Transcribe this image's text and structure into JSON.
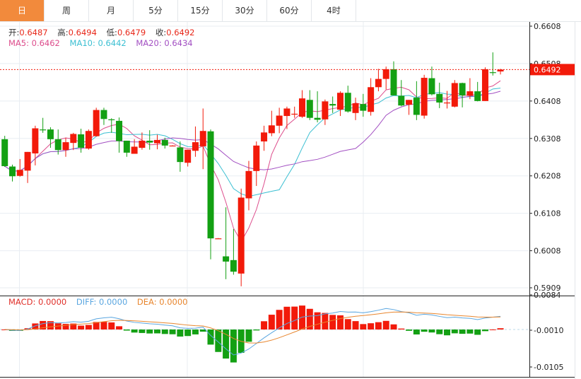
{
  "tabs": [
    {
      "label": "日",
      "active": true
    },
    {
      "label": "周"
    },
    {
      "label": "月"
    },
    {
      "label": "5分"
    },
    {
      "label": "15分"
    },
    {
      "label": "30分"
    },
    {
      "label": "60分"
    },
    {
      "label": "4时"
    }
  ],
  "ohlc": {
    "open_label": "开:",
    "open": "0.6487",
    "high_label": "高:",
    "high": "0.6494",
    "low_label": "低:",
    "low": "0.6479",
    "close_label": "收:",
    "close": "0.6492"
  },
  "ma": {
    "ma5": "MA5: 0.6462",
    "ma10": "MA10: 0.6442",
    "ma20": "MA20: 0.6434"
  },
  "macd": {
    "macd": "MACD: 0.0000",
    "diff": "DIFF: 0.0000",
    "dea": "DEA: 0.0000"
  },
  "colors": {
    "up": "#f21a0a",
    "down": "#13a013",
    "ma5": "#dd4d8c",
    "ma10": "#3bbfd2",
    "ma20": "#a24fc2",
    "diff": "#5aa6e0",
    "dea": "#e8862e",
    "accent": "#f28a3c"
  },
  "chart_data": {
    "type": "candlestick",
    "price_axis": {
      "ticks": [
        "0.6608",
        "0.6508",
        "0.6408",
        "0.6308",
        "0.6208",
        "0.6108",
        "0.6008",
        "0.5909"
      ],
      "range": [
        0.5909,
        0.6608
      ]
    },
    "last_price": "0.6492",
    "macd_axis": {
      "ticks": [
        "0.0084",
        "-0.0010",
        "-0.0105"
      ]
    },
    "candles": [
      [
        0.6306,
        0.6315,
        0.6232,
        0.6234
      ],
      [
        0.6233,
        0.6238,
        0.6193,
        0.6207
      ],
      [
        0.6208,
        0.6253,
        0.6206,
        0.6224
      ],
      [
        0.6222,
        0.6272,
        0.6189,
        0.6272
      ],
      [
        0.6268,
        0.6342,
        0.6236,
        0.6335
      ],
      [
        0.6332,
        0.6363,
        0.6323,
        0.6331
      ],
      [
        0.6332,
        0.6338,
        0.6283,
        0.6306
      ],
      [
        0.6306,
        0.6332,
        0.6265,
        0.6277
      ],
      [
        0.6277,
        0.631,
        0.6259,
        0.6298
      ],
      [
        0.6296,
        0.6323,
        0.6277,
        0.632
      ],
      [
        0.6319,
        0.6334,
        0.627,
        0.6283
      ],
      [
        0.6281,
        0.6332,
        0.6278,
        0.6328
      ],
      [
        0.6314,
        0.639,
        0.6313,
        0.6384
      ],
      [
        0.6384,
        0.639,
        0.6344,
        0.636
      ],
      [
        0.6359,
        0.6362,
        0.6323,
        0.6358
      ],
      [
        0.6355,
        0.6364,
        0.627,
        0.6301
      ],
      [
        0.6302,
        0.6302,
        0.6259,
        0.627
      ],
      [
        0.6267,
        0.6306,
        0.6267,
        0.6286
      ],
      [
        0.6283,
        0.6324,
        0.6278,
        0.6302
      ],
      [
        0.6302,
        0.633,
        0.6278,
        0.6297
      ],
      [
        0.6295,
        0.6318,
        0.6279,
        0.6304
      ],
      [
        0.6304,
        0.631,
        0.6281,
        0.6289
      ],
      [
        0.6289,
        0.629,
        0.6289,
        0.6289
      ],
      [
        0.6284,
        0.63,
        0.6219,
        0.6245
      ],
      [
        0.6243,
        0.6278,
        0.6233,
        0.6278
      ],
      [
        0.6275,
        0.634,
        0.6259,
        0.6298
      ],
      [
        0.6287,
        0.6388,
        0.6226,
        0.6328
      ],
      [
        0.6327,
        0.6332,
        0.5985,
        0.6041
      ],
      [
        0.6041,
        0.6042,
        0.6041,
        0.6041
      ],
      [
        0.5993,
        0.6124,
        0.5932,
        0.5979
      ],
      [
        0.5983,
        0.6066,
        0.5944,
        0.5952
      ],
      [
        0.5947,
        0.6174,
        0.5913,
        0.615
      ],
      [
        0.6148,
        0.6248,
        0.6116,
        0.6221
      ],
      [
        0.6221,
        0.63,
        0.6181,
        0.6289
      ],
      [
        0.63,
        0.6342,
        0.6275,
        0.6324
      ],
      [
        0.6322,
        0.6382,
        0.6314,
        0.6343
      ],
      [
        0.6342,
        0.639,
        0.6322,
        0.6369
      ],
      [
        0.6368,
        0.6393,
        0.6333,
        0.6388
      ],
      [
        0.6374,
        0.6393,
        0.6363,
        0.6374
      ],
      [
        0.6366,
        0.6437,
        0.6363,
        0.6415
      ],
      [
        0.6411,
        0.6437,
        0.6357,
        0.6363
      ],
      [
        0.6363,
        0.6434,
        0.6351,
        0.6358
      ],
      [
        0.6359,
        0.6412,
        0.6344,
        0.6407
      ],
      [
        0.64,
        0.642,
        0.6376,
        0.6396
      ],
      [
        0.6385,
        0.6434,
        0.6368,
        0.643
      ],
      [
        0.643,
        0.6449,
        0.6377,
        0.638
      ],
      [
        0.6376,
        0.6417,
        0.6357,
        0.6402
      ],
      [
        0.64,
        0.6427,
        0.6366,
        0.6382
      ],
      [
        0.6379,
        0.6469,
        0.6369,
        0.6445
      ],
      [
        0.6445,
        0.6494,
        0.6434,
        0.6467
      ],
      [
        0.6467,
        0.65,
        0.6439,
        0.6493
      ],
      [
        0.6493,
        0.6514,
        0.6423,
        0.6423
      ],
      [
        0.6422,
        0.6464,
        0.6394,
        0.6396
      ],
      [
        0.6398,
        0.6411,
        0.6371,
        0.6411
      ],
      [
        0.6417,
        0.6461,
        0.6357,
        0.6371
      ],
      [
        0.6369,
        0.6478,
        0.6361,
        0.647
      ],
      [
        0.6469,
        0.65,
        0.6423,
        0.6426
      ],
      [
        0.6427,
        0.6457,
        0.6389,
        0.6404
      ],
      [
        0.6404,
        0.6435,
        0.6388,
        0.6404
      ],
      [
        0.6393,
        0.6464,
        0.6391,
        0.6456
      ],
      [
        0.6456,
        0.6457,
        0.6391,
        0.6423
      ],
      [
        0.6422,
        0.6469,
        0.6413,
        0.6434
      ],
      [
        0.6434,
        0.6459,
        0.6407,
        0.6408
      ],
      [
        0.6408,
        0.6498,
        0.6408,
        0.6493
      ],
      [
        0.6485,
        0.6538,
        0.6476,
        0.6484
      ],
      [
        0.6487,
        0.6494,
        0.6479,
        0.6492
      ]
    ]
  }
}
